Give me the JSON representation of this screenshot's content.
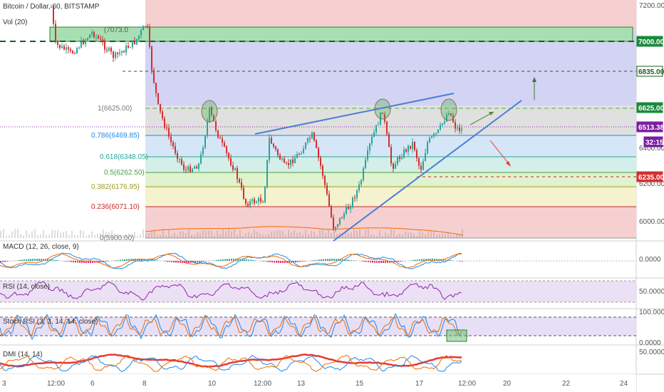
{
  "header": {
    "symbol_title": "Bitcoin / Dollar, 60, BITSTAMP",
    "volume_label": "Vol (20)"
  },
  "price_axis": {
    "ticks": [
      "7200.00",
      "6400.00",
      "6200.00",
      "6000.00"
    ]
  },
  "price_badges": [
    {
      "label": "7000.00",
      "bg": "#1b8a3e",
      "fg": "#ffffff"
    },
    {
      "label": "6835.00",
      "bg": "#ffffff",
      "fg": "#1b5e20"
    },
    {
      "label": "6625.00",
      "bg": "#1b8a3e",
      "fg": "#ffffff"
    },
    {
      "label": "6513.38",
      "bg": "#7b1fa2",
      "fg": "#ffffff"
    },
    {
      "label": "32:15",
      "bg": "#7b1fa2",
      "fg": "#ffffff"
    },
    {
      "label": "6235.00",
      "bg": "#d32f2f",
      "fg": "#ffffff"
    }
  ],
  "fib_levels": [
    {
      "label": "1(6625.00)",
      "color": "#777777"
    },
    {
      "label": "0.786(6469.85)",
      "color": "#1e88e5"
    },
    {
      "label": "0.618(6348.05)",
      "color": "#26a69a"
    },
    {
      "label": "0.5(6262.50)",
      "color": "#43a047"
    },
    {
      "label": "0.382(6176.95)",
      "color": "#9e9d24"
    },
    {
      "label": "0.236(6071.10)",
      "color": "#c62828"
    },
    {
      "label": "0(5900.00)",
      "color": "#777777"
    },
    {
      "label": "(7073.0",
      "color": "#555555"
    }
  ],
  "indicators": {
    "macd": {
      "label": "MACD (12, 26, close, 9)",
      "value": "0.0000"
    },
    "rsi": {
      "label": "RSI (14, close)",
      "value": "50.0000"
    },
    "stoch": {
      "label": "Stoch RSI (3, 3, 14, 14, close)",
      "value_top": "100.0000",
      "value_bottom": "0.0000"
    },
    "dmi": {
      "label": "DMI (14, 14)",
      "value": "50.0000"
    }
  },
  "time_axis": {
    "labels": [
      "3",
      "12:00",
      "6",
      "8",
      "10",
      "12:00",
      "13",
      "15",
      "17",
      "12:00",
      "20",
      "22",
      "24"
    ]
  },
  "colors": {
    "zone_red": "#f6cfd1",
    "zone_blue": "#d3d3f3",
    "zone_green_band": "#a8dfb2",
    "zone_gray": "#e0e0e0",
    "zone_light_blue": "#d5e6f7",
    "zone_teal": "#d4efe9",
    "zone_light_green": "#e1f2cf",
    "zone_yellow": "#f5f2cf",
    "candle_up": "#26a69a",
    "candle_down": "#d32f2f",
    "trendline": "#4a7fd4"
  }
}
